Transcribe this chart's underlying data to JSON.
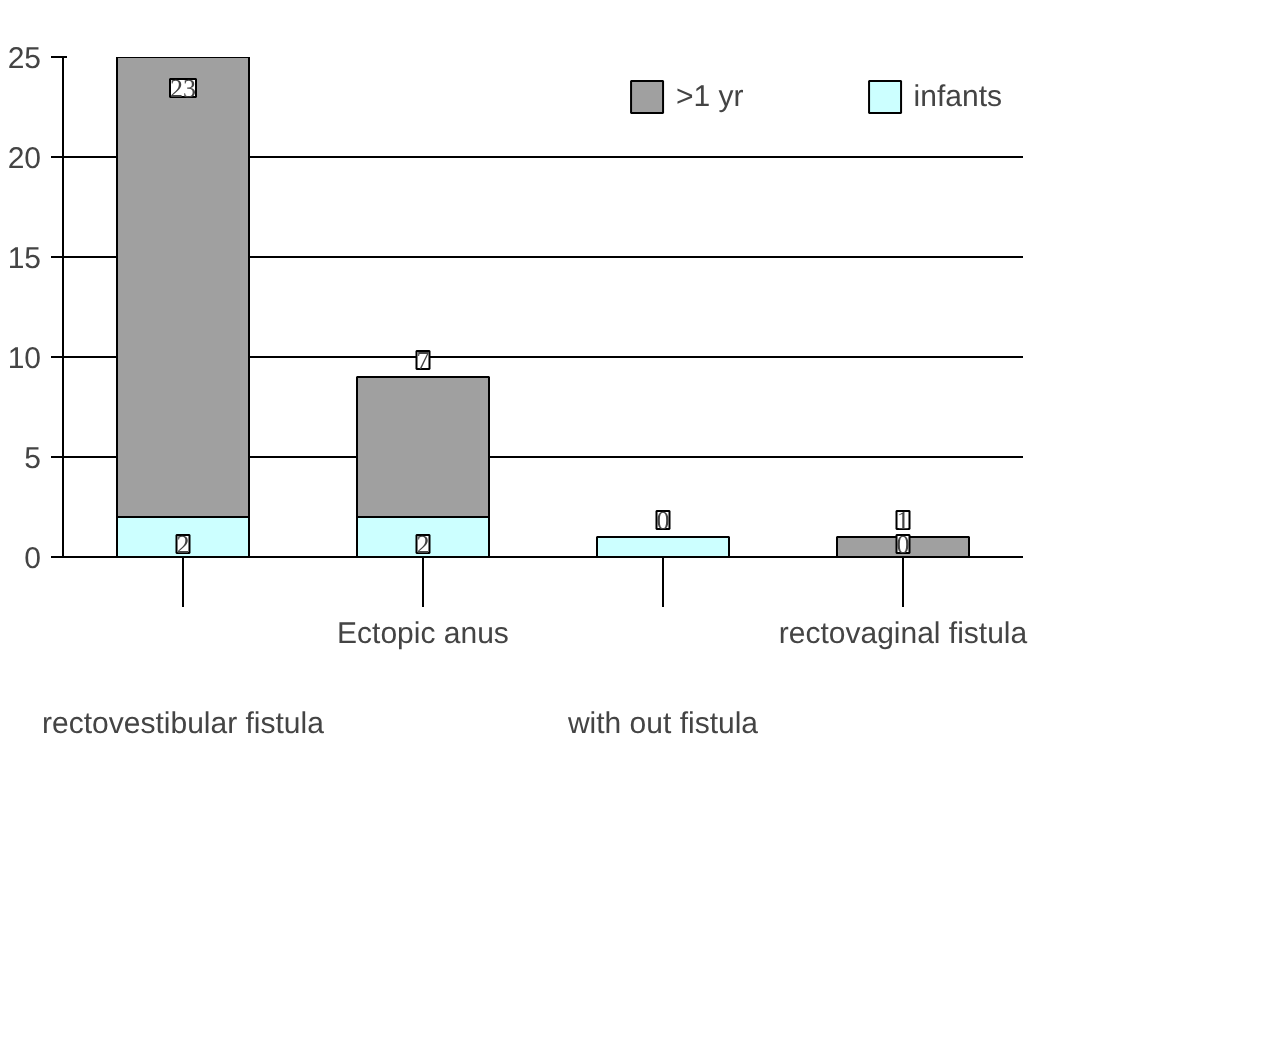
{
  "chart_data": {
    "type": "bar",
    "stacked": true,
    "categories": [
      "rectovestibular fistula",
      "Ectopic anus",
      "with out fistula",
      "rectovaginal fistula"
    ],
    "series": [
      {
        "name": "infants",
        "color": "#ccffff",
        "values": [
          2,
          2,
          1,
          0
        ],
        "value_labels": [
          "2",
          "2",
          null,
          "0"
        ]
      },
      {
        "name": ">1 yr",
        "color": "#a0a0a0",
        "values": [
          23,
          7,
          0,
          1
        ],
        "value_labels": [
          "23",
          "7",
          "0",
          "1"
        ]
      }
    ],
    "ylim": [
      0,
      25
    ],
    "yticks": [
      0,
      5,
      10,
      15,
      20,
      25
    ],
    "grid": "y",
    "legend": "top right"
  }
}
